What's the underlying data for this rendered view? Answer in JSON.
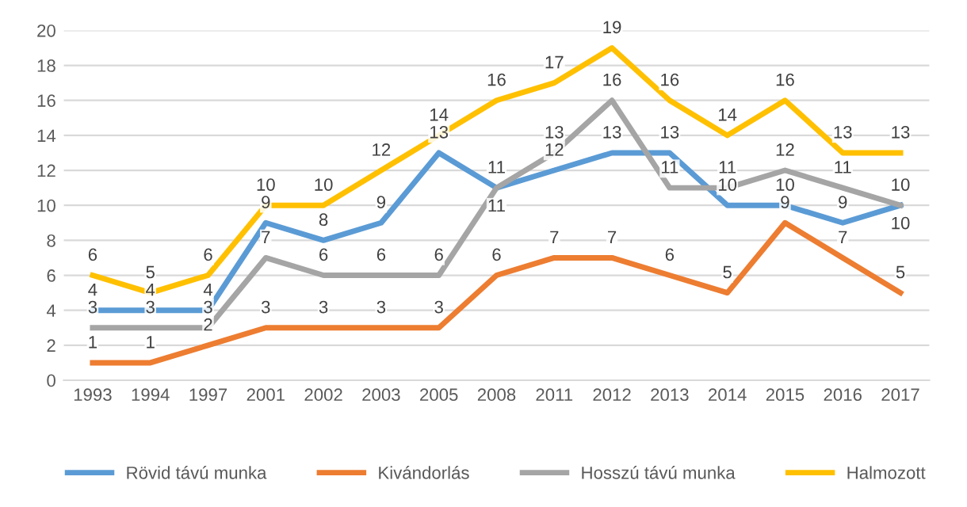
{
  "chart_data": {
    "type": "line",
    "categories": [
      "1993",
      "1994",
      "1997",
      "2001",
      "2002",
      "2003",
      "2005",
      "2008",
      "2011",
      "2012",
      "2013",
      "2014",
      "2015",
      "2016",
      "2017"
    ],
    "series": [
      {
        "name": "Rövid távú munka",
        "color": "#5b9bd5",
        "values": [
          4,
          4,
          4,
          9,
          8,
          9,
          13,
          11,
          12,
          13,
          13,
          10,
          10,
          9,
          10
        ]
      },
      {
        "name": "Kivándorlás",
        "color": "#ed7d31",
        "values": [
          1,
          1,
          2,
          3,
          3,
          3,
          3,
          6,
          7,
          7,
          6,
          5,
          9,
          7,
          5
        ]
      },
      {
        "name": "Hosszú távú munka",
        "color": "#a5a5a5",
        "values": [
          3,
          3,
          3,
          7,
          6,
          6,
          6,
          11,
          13,
          16,
          11,
          11,
          12,
          11,
          10
        ]
      },
      {
        "name": "Halmozott",
        "color": "#ffc000",
        "values": [
          6,
          5,
          6,
          10,
          10,
          12,
          14,
          16,
          17,
          19,
          16,
          14,
          16,
          13,
          13
        ]
      }
    ],
    "ylim": [
      0,
      20
    ],
    "yticks": [
      0,
      2,
      4,
      6,
      8,
      10,
      12,
      14,
      16,
      18,
      20
    ],
    "grid": "y",
    "legend": "bottom",
    "data_labels": true,
    "marker": "none",
    "line_style": "solid"
  }
}
